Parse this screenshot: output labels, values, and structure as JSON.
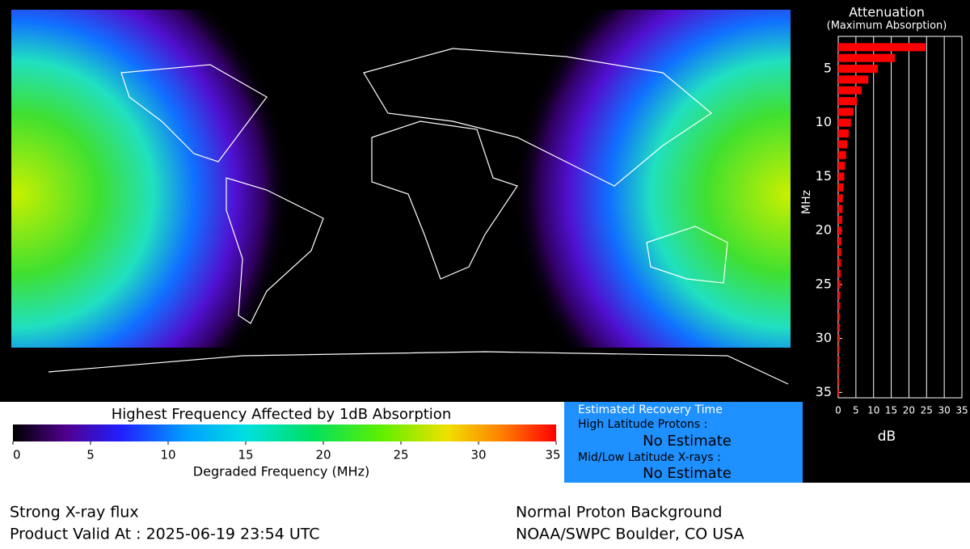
{
  "map": {
    "title": "Highest Frequency Affected by 1dB Absorption"
  },
  "colorbar": {
    "label": "Degraded Frequency (MHz)",
    "lim": [
      0,
      35
    ],
    "ticks": [
      0,
      5,
      10,
      15,
      20,
      25,
      30,
      35
    ]
  },
  "recovery": {
    "title": "Estimated Recovery Time",
    "high_label": "High Latitude Protons :",
    "high_value": "No Estimate",
    "low_label": "Mid/Low Latitude X-rays :",
    "low_value": "No Estimate"
  },
  "footer": {
    "left_1": "Strong X-ray flux",
    "left_2": "Product Valid At : 2025-06-19 23:54 UTC",
    "right_1": "Normal Proton Background",
    "right_2": "NOAA/SWPC Boulder, CO USA"
  },
  "chart_data": {
    "type": "bar",
    "orientation": "horizontal",
    "title": "Attenuation",
    "subtitle": "(Maximum Absorption)",
    "x_label": "MHz",
    "y_label": "dB",
    "color": "#ff0000",
    "grid": true,
    "x": [
      3,
      4,
      5,
      6,
      7,
      8,
      9,
      10,
      11,
      12,
      13,
      14,
      15,
      16,
      17,
      18,
      19,
      20,
      21,
      22,
      23,
      24,
      25,
      26,
      27,
      28,
      29,
      30,
      31,
      32,
      33,
      34,
      35
    ],
    "values": [
      24.7,
      16,
      11.2,
      8.5,
      6.6,
      5.3,
      4.3,
      3.6,
      3.0,
      2.6,
      2.2,
      1.9,
      1.7,
      1.5,
      1.3,
      1.2,
      1.1,
      1.0,
      0.9,
      0.85,
      0.8,
      0.7,
      0.65,
      0.6,
      0.55,
      0.5,
      0.5,
      0.45,
      0.4,
      0.4,
      0.35,
      0.35,
      0.3
    ],
    "xlim": [
      2,
      35.5
    ],
    "xticks": [
      5,
      10,
      15,
      20,
      25,
      30,
      35
    ],
    "ylim": [
      0,
      35
    ],
    "yticks": [
      0,
      5,
      10,
      15,
      20,
      25,
      30,
      35
    ]
  }
}
